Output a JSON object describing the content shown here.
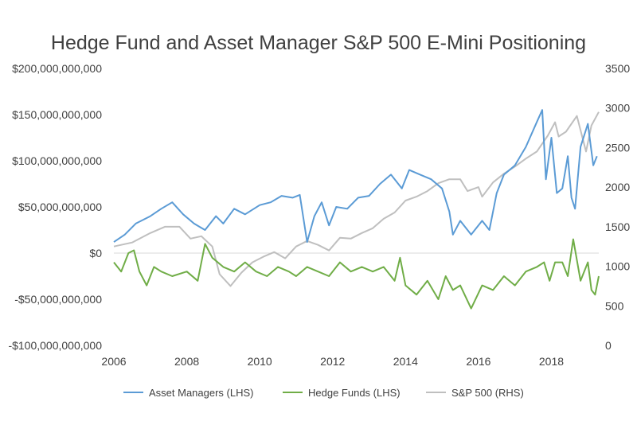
{
  "chart_data": {
    "type": "line",
    "title": "Hedge Fund and Asset Manager S&P 500 E-Mini Positioning",
    "x_ticks": [
      "2006",
      "2008",
      "2010",
      "2012",
      "2014",
      "2016",
      "2018"
    ],
    "y_left": {
      "lim": [
        -100000000000,
        200000000000
      ],
      "ticks": [
        -100000000000,
        -50000000000,
        0,
        50000000000,
        100000000000,
        150000000000,
        200000000000
      ],
      "tick_labels": [
        "-$100,000,000,000",
        "-$50,000,000,000",
        "$0",
        "$50,000,000,000",
        "$100,000,000,000",
        "$150,000,000,000",
        "$200,000,000,000"
      ]
    },
    "y_right": {
      "lim": [
        0,
        3500
      ],
      "ticks": [
        0,
        500,
        1000,
        1500,
        2000,
        2500,
        3000,
        3500
      ],
      "tick_labels": [
        "0",
        "500",
        "1000",
        "1500",
        "2000",
        "2500",
        "3000",
        "3500"
      ]
    },
    "x_lim": [
      2006,
      2019.3
    ],
    "grid": false,
    "legend_position": "bottom",
    "series": [
      {
        "name": "Asset Managers (LHS)",
        "axis": "left",
        "color": "#5B9BD5",
        "x": [
          2006.0,
          2006.3,
          2006.6,
          2007.0,
          2007.3,
          2007.6,
          2007.9,
          2008.2,
          2008.5,
          2008.8,
          2009.0,
          2009.3,
          2009.6,
          2010.0,
          2010.3,
          2010.6,
          2010.9,
          2011.1,
          2011.3,
          2011.5,
          2011.7,
          2011.9,
          2012.1,
          2012.4,
          2012.7,
          2013.0,
          2013.3,
          2013.6,
          2013.9,
          2014.1,
          2014.4,
          2014.7,
          2015.0,
          2015.2,
          2015.3,
          2015.5,
          2015.8,
          2016.1,
          2016.3,
          2016.5,
          2016.7,
          2017.0,
          2017.3,
          2017.6,
          2017.75,
          2017.85,
          2018.0,
          2018.15,
          2018.3,
          2018.45,
          2018.55,
          2018.65,
          2018.8,
          2019.0,
          2019.15,
          2019.25
        ],
        "values": [
          12000000000.0,
          20000000000.0,
          32000000000.0,
          40000000000.0,
          48000000000.0,
          55000000000.0,
          42000000000.0,
          32000000000.0,
          25000000000.0,
          40000000000.0,
          32000000000.0,
          48000000000.0,
          42000000000.0,
          52000000000.0,
          55000000000.0,
          62000000000.0,
          60000000000.0,
          63000000000.0,
          12000000000.0,
          40000000000.0,
          55000000000.0,
          30000000000.0,
          50000000000.0,
          48000000000.0,
          60000000000.0,
          62000000000.0,
          75000000000.0,
          85000000000.0,
          70000000000.0,
          90000000000.0,
          85000000000.0,
          80000000000.0,
          70000000000.0,
          45000000000.0,
          20000000000.0,
          35000000000.0,
          20000000000.0,
          35000000000.0,
          25000000000.0,
          65000000000.0,
          85000000000.0,
          95000000000.0,
          115000000000.0,
          142000000000.0,
          155000000000.0,
          80000000000.0,
          125000000000.0,
          65000000000.0,
          70000000000.0,
          105000000000.0,
          60000000000.0,
          48000000000.0,
          115000000000.0,
          140000000000.0,
          95000000000.0,
          105000000000.0
        ]
      },
      {
        "name": "Hedge Funds (LHS)",
        "axis": "left",
        "color": "#70AD47",
        "x": [
          2006.0,
          2006.2,
          2006.4,
          2006.55,
          2006.7,
          2006.9,
          2007.1,
          2007.3,
          2007.6,
          2008.0,
          2008.3,
          2008.5,
          2008.7,
          2009.0,
          2009.3,
          2009.6,
          2009.9,
          2010.2,
          2010.5,
          2010.8,
          2011.0,
          2011.3,
          2011.6,
          2011.9,
          2012.2,
          2012.5,
          2012.8,
          2013.1,
          2013.4,
          2013.7,
          2013.85,
          2014.0,
          2014.3,
          2014.6,
          2014.9,
          2015.1,
          2015.3,
          2015.5,
          2015.8,
          2016.1,
          2016.4,
          2016.7,
          2017.0,
          2017.3,
          2017.6,
          2017.8,
          2017.95,
          2018.1,
          2018.3,
          2018.45,
          2018.6,
          2018.8,
          2019.0,
          2019.1,
          2019.2,
          2019.3
        ],
        "values": [
          -10000000000.0,
          -20000000000.0,
          0,
          3000000000.0,
          -20000000000.0,
          -35000000000.0,
          -15000000000.0,
          -20000000000.0,
          -25000000000.0,
          -20000000000.0,
          -30000000000.0,
          10000000000.0,
          -5000000000.0,
          -15000000000.0,
          -20000000000.0,
          -10000000000.0,
          -20000000000.0,
          -25000000000.0,
          -15000000000.0,
          -20000000000.0,
          -25000000000.0,
          -15000000000.0,
          -20000000000.0,
          -25000000000.0,
          -10000000000.0,
          -20000000000.0,
          -15000000000.0,
          -20000000000.0,
          -15000000000.0,
          -30000000000.0,
          -5000000000.0,
          -35000000000.0,
          -45000000000.0,
          -30000000000.0,
          -50000000000.0,
          -25000000000.0,
          -40000000000.0,
          -35000000000.0,
          -60000000000.0,
          -35000000000.0,
          -40000000000.0,
          -25000000000.0,
          -35000000000.0,
          -20000000000.0,
          -15000000000.0,
          -10000000000.0,
          -30000000000.0,
          -10000000000.0,
          -10000000000.0,
          -25000000000.0,
          15000000000.0,
          -30000000000.0,
          -10000000000.0,
          -40000000000.0,
          -45000000000.0,
          -25000000000.0
        ]
      },
      {
        "name": "S&P 500 (RHS)",
        "axis": "right",
        "color": "#BFBFBF",
        "x": [
          2006.0,
          2006.5,
          2007.0,
          2007.4,
          2007.8,
          2008.1,
          2008.4,
          2008.7,
          2008.9,
          2009.2,
          2009.5,
          2009.8,
          2010.1,
          2010.4,
          2010.7,
          2011.0,
          2011.3,
          2011.6,
          2011.9,
          2012.2,
          2012.5,
          2012.8,
          2013.1,
          2013.4,
          2013.7,
          2014.0,
          2014.3,
          2014.6,
          2014.9,
          2015.2,
          2015.5,
          2015.7,
          2016.0,
          2016.1,
          2016.4,
          2016.7,
          2017.0,
          2017.3,
          2017.6,
          2017.9,
          2018.1,
          2018.2,
          2018.4,
          2018.7,
          2018.95,
          2019.1,
          2019.3
        ],
        "values": [
          1250,
          1300,
          1420,
          1500,
          1500,
          1350,
          1380,
          1250,
          900,
          750,
          920,
          1050,
          1120,
          1180,
          1100,
          1250,
          1320,
          1270,
          1200,
          1360,
          1350,
          1420,
          1480,
          1600,
          1680,
          1830,
          1880,
          1950,
          2050,
          2100,
          2100,
          1950,
          2000,
          1880,
          2060,
          2170,
          2260,
          2360,
          2450,
          2650,
          2820,
          2640,
          2700,
          2900,
          2450,
          2780,
          2950
        ]
      }
    ]
  }
}
